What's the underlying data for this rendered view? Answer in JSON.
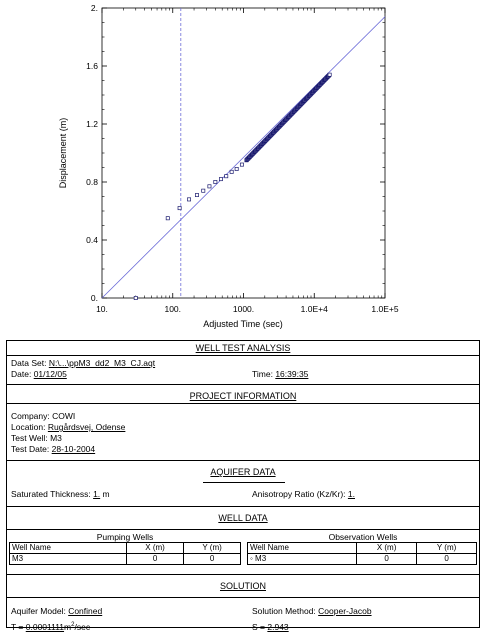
{
  "chart_data": {
    "type": "scatter",
    "xscale": "log",
    "xlim": [
      10,
      100000
    ],
    "ylim": [
      0,
      2
    ],
    "xlabel": "Adjusted Time (sec)",
    "ylabel": "Displacement (m)",
    "x_ticks": [
      10,
      100,
      1000,
      10000,
      100000
    ],
    "x_tick_labels": [
      "10.",
      "100.",
      "1000.",
      "1.0E+4",
      "1.0E+5"
    ],
    "y_ticks": [
      0,
      0.4,
      0.8,
      1.2,
      1.6,
      2.0
    ],
    "y_tick_labels": [
      "0.",
      "0.4",
      "0.8",
      "1.2",
      "1.6",
      "2."
    ],
    "points_sparse": [
      {
        "x": 30,
        "y": 0.0
      },
      {
        "x": 85,
        "y": 0.55
      },
      {
        "x": 125,
        "y": 0.62
      },
      {
        "x": 170,
        "y": 0.68
      },
      {
        "x": 220,
        "y": 0.71
      },
      {
        "x": 270,
        "y": 0.74
      },
      {
        "x": 330,
        "y": 0.77
      },
      {
        "x": 400,
        "y": 0.8
      },
      {
        "x": 480,
        "y": 0.82
      },
      {
        "x": 570,
        "y": 0.84
      },
      {
        "x": 680,
        "y": 0.87
      },
      {
        "x": 800,
        "y": 0.89
      },
      {
        "x": 950,
        "y": 0.92
      }
    ],
    "dense_series": {
      "x_start": 1100,
      "x_end": 16500,
      "y_start": 0.95,
      "y_end": 1.54,
      "count": 140
    },
    "fit_line": {
      "x1": 10,
      "y1": 0.0,
      "x2": 100000,
      "y2": 1.94
    },
    "vertical_line_x": 130,
    "colors": {
      "fit_line": "#6b6bd8",
      "vline": "#6b6bd8",
      "points": "#1a1a6e"
    }
  },
  "report": {
    "well_test_analysis": {
      "title": "WELL TEST ANALYSIS",
      "data_set_label": "Data Set:",
      "data_set_value": "N:\\...\\ppM3_dd2_M3_CJ.aqt",
      "date_label": "Date:",
      "date_value": "01/12/05",
      "time_label": "Time:",
      "time_value": "16:39:35"
    },
    "project_information": {
      "title": "PROJECT INFORMATION",
      "company_label": "Company:",
      "company_value": "COWI",
      "location_label": "Location:",
      "location_value": "Rugårdsvej, Odense",
      "test_well_label": "Test Well:",
      "test_well_value": "M3",
      "test_date_label": "Test Date:",
      "test_date_value": "28-10-2004"
    },
    "aquifer_data": {
      "title": "AQUIFER DATA",
      "sat_label": "Saturated Thickness:",
      "sat_value": "1.",
      "sat_unit": "m",
      "aniso_label": "Anisotropy Ratio (Kz/Kr):",
      "aniso_value": "1."
    },
    "well_data": {
      "title": "WELL DATA",
      "pumping_title": "Pumping Wells",
      "observation_title": "Observation Wells",
      "col_well_name": "Well Name",
      "col_x": "X (m)",
      "col_y": "Y (m)",
      "pumping_rows": [
        {
          "name": "M3",
          "x": "0",
          "y": "0"
        }
      ],
      "observation_rows": [
        {
          "name": "◦ M3",
          "x": "0",
          "y": "0"
        }
      ]
    },
    "solution": {
      "title": "SOLUTION",
      "model_label": "Aquifer Model:",
      "model_value": "Confined",
      "method_label": "Solution Method:",
      "method_value": "Cooper-Jacob",
      "t_label": "T =",
      "t_value": "0.0001111",
      "t_unit": "m",
      "t_unit_sup": "2",
      "t_unit_tail": "/sec",
      "s_label": "S =",
      "s_value": "2.943"
    }
  }
}
